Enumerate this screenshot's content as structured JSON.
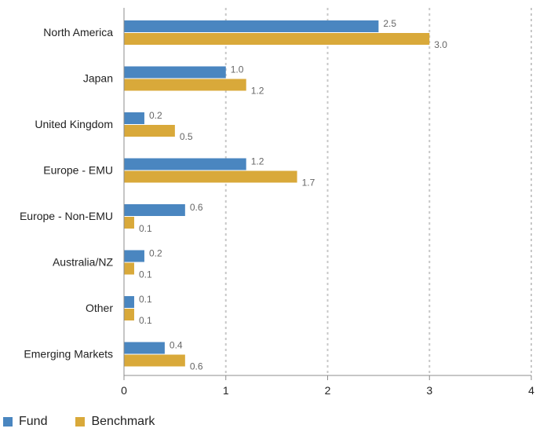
{
  "chart_data": {
    "type": "bar",
    "orientation": "horizontal",
    "categories": [
      "North America",
      "Japan",
      "United Kingdom",
      "Europe - EMU",
      "Europe - Non-EMU",
      "Australia/NZ",
      "Other",
      "Emerging Markets"
    ],
    "series": [
      {
        "name": "Fund",
        "color": "#4a86c0",
        "values": [
          2.5,
          1.0,
          0.2,
          1.2,
          0.6,
          0.2,
          0.1,
          0.4
        ],
        "labels": [
          "2.5",
          "1.0",
          "0.2",
          "1.2",
          "0.6",
          "0.2",
          "0.1",
          "0.4"
        ]
      },
      {
        "name": "Benchmark",
        "color": "#d9a93a",
        "values": [
          3.0,
          1.2,
          0.5,
          1.7,
          0.1,
          0.1,
          0.1,
          0.6
        ],
        "labels": [
          "3.0",
          "1.2",
          "0.5",
          "1.7",
          "0.1",
          "0.1",
          "0.1",
          "0.6"
        ]
      }
    ],
    "xlim": [
      0,
      4
    ],
    "xticks": [
      "0",
      "1",
      "2",
      "3",
      "4"
    ],
    "grid": "vertical dashed",
    "legend_position": "bottom-left"
  }
}
